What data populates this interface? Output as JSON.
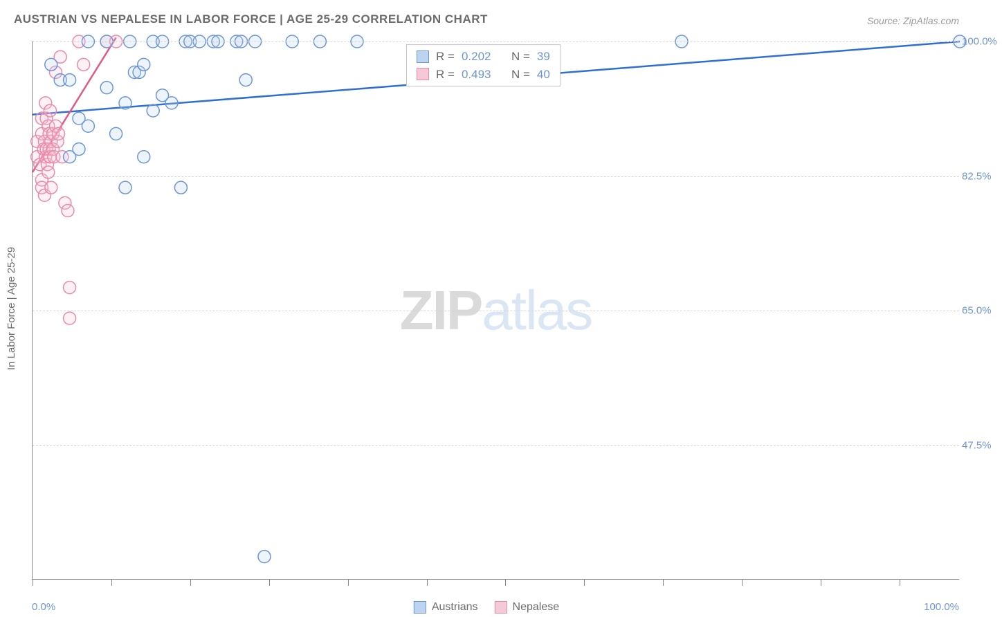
{
  "title": "AUSTRIAN VS NEPALESE IN LABOR FORCE | AGE 25-29 CORRELATION CHART",
  "source": "Source: ZipAtlas.com",
  "y_axis_label": "In Labor Force | Age 25-29",
  "x_min_label": "0.0%",
  "x_max_label": "100.0%",
  "watermark_a": "ZIP",
  "watermark_b": "atlas",
  "chart": {
    "type": "scatter",
    "xlim": [
      0,
      100
    ],
    "ylim": [
      30,
      100
    ],
    "y_ticks": [
      47.5,
      65.0,
      82.5,
      100.0
    ],
    "y_tick_labels": [
      "47.5%",
      "65.0%",
      "82.5%",
      "100.0%"
    ],
    "x_ticks": [
      0,
      8.5,
      17,
      25.5,
      34,
      42.5,
      51,
      59.5,
      68,
      76.5,
      85,
      93.5
    ],
    "marker_radius": 9,
    "grid_color": "#d5d5d5",
    "series": [
      {
        "name": "Austrians",
        "fill": "#bcd4f0",
        "stroke": "#6d95d6",
        "swatch_fill": "#bcd4f0",
        "swatch_stroke": "#6d95d6",
        "R_label": "R =",
        "R": "0.202",
        "N_label": "N =",
        "N": "39",
        "trend": {
          "x1": 0,
          "y1": 90.5,
          "x2": 100,
          "y2": 100.0,
          "color": "#2f6fd4"
        },
        "points": [
          [
            2,
            97
          ],
          [
            3,
            95
          ],
          [
            4,
            95
          ],
          [
            4,
            85
          ],
          [
            5,
            86
          ],
          [
            5,
            90
          ],
          [
            6,
            100
          ],
          [
            6,
            89
          ],
          [
            8,
            94
          ],
          [
            8,
            100
          ],
          [
            9,
            88
          ],
          [
            10,
            81
          ],
          [
            10,
            92
          ],
          [
            10.5,
            100
          ],
          [
            11,
            96
          ],
          [
            11.5,
            96
          ],
          [
            12,
            97
          ],
          [
            12,
            85
          ],
          [
            13,
            91
          ],
          [
            13,
            100
          ],
          [
            14,
            93
          ],
          [
            14,
            100
          ],
          [
            15,
            92
          ],
          [
            16,
            81
          ],
          [
            16.5,
            100
          ],
          [
            17,
            100
          ],
          [
            18,
            100
          ],
          [
            19.5,
            100
          ],
          [
            20,
            100
          ],
          [
            22,
            100
          ],
          [
            22.5,
            100
          ],
          [
            23,
            95
          ],
          [
            24,
            100
          ],
          [
            25,
            33
          ],
          [
            28,
            100
          ],
          [
            31,
            100
          ],
          [
            35,
            100
          ],
          [
            70,
            100
          ],
          [
            100,
            100
          ]
        ]
      },
      {
        "name": "Nepalese",
        "fill": "#f6c9d6",
        "stroke": "#e88aa8",
        "swatch_fill": "#f6c9d6",
        "swatch_stroke": "#e88aa8",
        "R_label": "R =",
        "R": "0.493",
        "N_label": "N =",
        "N": "40",
        "trend": {
          "x1": 0,
          "y1": 83,
          "x2": 9,
          "y2": 100.5,
          "color": "#e05a88"
        },
        "points": [
          [
            0.5,
            85
          ],
          [
            0.5,
            87
          ],
          [
            0.8,
            84
          ],
          [
            1,
            82
          ],
          [
            1,
            81
          ],
          [
            1,
            90
          ],
          [
            1,
            88
          ],
          [
            1.2,
            86
          ],
          [
            1.3,
            87
          ],
          [
            1.3,
            80
          ],
          [
            1.4,
            85
          ],
          [
            1.4,
            92
          ],
          [
            1.5,
            86
          ],
          [
            1.5,
            90
          ],
          [
            1.6,
            84
          ],
          [
            1.7,
            89
          ],
          [
            1.7,
            83
          ],
          [
            1.8,
            86
          ],
          [
            1.8,
            88
          ],
          [
            1.9,
            91
          ],
          [
            1.9,
            85
          ],
          [
            2,
            87
          ],
          [
            2,
            81
          ],
          [
            2.2,
            86
          ],
          [
            2.2,
            88
          ],
          [
            2.3,
            85
          ],
          [
            2.5,
            89
          ],
          [
            2.5,
            96
          ],
          [
            2.7,
            87
          ],
          [
            2.8,
            88
          ],
          [
            3,
            98
          ],
          [
            3.2,
            85
          ],
          [
            3.5,
            79
          ],
          [
            3.8,
            78
          ],
          [
            4,
            68
          ],
          [
            4,
            64
          ],
          [
            5,
            100
          ],
          [
            5.5,
            97
          ],
          [
            8,
            100
          ],
          [
            9,
            100
          ]
        ]
      }
    ],
    "legend_items": [
      {
        "label": "Austrians",
        "fill": "#bcd4f0",
        "stroke": "#6d95d6"
      },
      {
        "label": "Nepalese",
        "fill": "#f6c9d6",
        "stroke": "#e88aa8"
      }
    ]
  }
}
